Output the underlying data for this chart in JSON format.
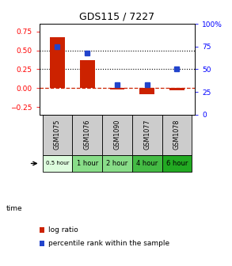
{
  "title": "GDS115 / 7227",
  "samples": [
    "GSM1075",
    "GSM1076",
    "GSM1090",
    "GSM1077",
    "GSM1078"
  ],
  "time_labels": [
    "0.5 hour",
    "1 hour",
    "2 hour",
    "4 hour",
    "6 hour"
  ],
  "time_colors": [
    "#ddfcdd",
    "#88dd88",
    "#88dd88",
    "#44bb44",
    "#22aa22"
  ],
  "log_ratio": [
    0.67,
    0.37,
    -0.02,
    -0.08,
    -0.03
  ],
  "percentile_rank": [
    75,
    68,
    33,
    33,
    50
  ],
  "bar_color": "#cc2200",
  "dot_color": "#2244cc",
  "ylim_left": [
    -0.35,
    0.85
  ],
  "ylim_right": [
    0,
    100
  ],
  "yticks_left": [
    -0.25,
    0,
    0.25,
    0.5,
    0.75
  ],
  "yticks_right": [
    0,
    25,
    50,
    75,
    100
  ],
  "hlines": [
    0.5,
    0.25
  ],
  "zero_line_color": "#cc2200",
  "sample_box_color": "#cccccc",
  "bar_width": 0.5
}
